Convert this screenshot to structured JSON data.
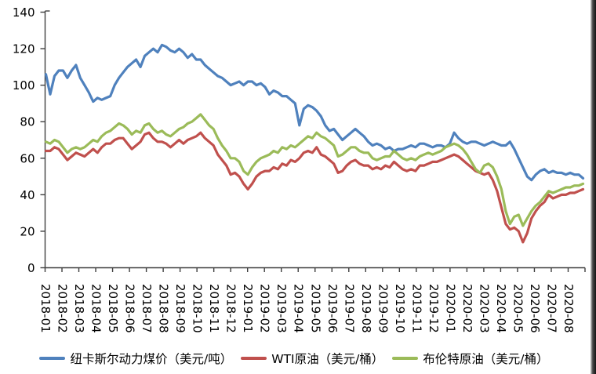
{
  "chart_data": {
    "type": "line",
    "title": "",
    "ylim": [
      0,
      140
    ],
    "y_ticks": [
      0,
      20,
      40,
      60,
      80,
      100,
      120,
      140
    ],
    "grid": false,
    "legend_position": "bottom",
    "axis_color": "#3f3f3f",
    "text_color": "#000000",
    "background_color": "#ffffff",
    "x_labels": [
      "2018-01",
      "2018-02",
      "2018-03",
      "2018-04",
      "2018-05",
      "2018-06",
      "2018-07",
      "2018-08",
      "2018-09",
      "2018-10",
      "2018-11",
      "2018-12",
      "2019-01",
      "2019-02",
      "2019-03",
      "2019-04",
      "2019-05",
      "2019-06",
      "2019-07",
      "2019-08",
      "2019-09",
      "2019-10",
      "2019-11",
      "2019-12",
      "2020-01",
      "2020-02",
      "2020-03",
      "2020-04",
      "2020-05",
      "2020-06",
      "2020-07",
      "2020-08"
    ],
    "points_per_month": 4,
    "series": [
      {
        "name": "纽卡斯尔动力煤价（美元/吨）",
        "color": "#4f81bd",
        "values": [
          106,
          95,
          105,
          108,
          108,
          104,
          108,
          111,
          104,
          100,
          96,
          91,
          93,
          92,
          93,
          94,
          100,
          104,
          107,
          110,
          112,
          114,
          110,
          116,
          118,
          120,
          118,
          122,
          121,
          119,
          118,
          120,
          118,
          115,
          117,
          114,
          114,
          111,
          109,
          107,
          105,
          104,
          102,
          100,
          101,
          102,
          100,
          102,
          102,
          100,
          101,
          99,
          95,
          97,
          96,
          94,
          94,
          92,
          90,
          78,
          87,
          89,
          88,
          86,
          83,
          78,
          75,
          76,
          73,
          70,
          72,
          74,
          76,
          74,
          72,
          69,
          67,
          68,
          67,
          65,
          66,
          64,
          65,
          65,
          66,
          67,
          66,
          68,
          68,
          67,
          66,
          67,
          67,
          66,
          68,
          74,
          71,
          69,
          68,
          69,
          69,
          68,
          67,
          68,
          69,
          68,
          67,
          67,
          69,
          65,
          60,
          55,
          50,
          48,
          51,
          53,
          54,
          52,
          53,
          52,
          52,
          51,
          52,
          51,
          51,
          49
        ]
      },
      {
        "name": "WTI原油（美元/桶）",
        "color": "#c0504d",
        "values": [
          64,
          64,
          66,
          65,
          62,
          59,
          61,
          63,
          62,
          61,
          63,
          65,
          63,
          66,
          68,
          68,
          70,
          71,
          71,
          68,
          65,
          67,
          69,
          73,
          74,
          71,
          69,
          69,
          68,
          66,
          68,
          70,
          68,
          70,
          71,
          72,
          74,
          71,
          69,
          67,
          62,
          59,
          56,
          51,
          52,
          50,
          46,
          43,
          46,
          50,
          52,
          53,
          53,
          55,
          54,
          57,
          56,
          59,
          58,
          60,
          63,
          64,
          63,
          66,
          62,
          61,
          59,
          57,
          52,
          53,
          56,
          58,
          59,
          57,
          56,
          56,
          54,
          55,
          54,
          56,
          55,
          58,
          56,
          54,
          53,
          54,
          53,
          56,
          56,
          57,
          58,
          58,
          59,
          60,
          61,
          62,
          61,
          59,
          57,
          55,
          53,
          52,
          51,
          52,
          48,
          42,
          33,
          24,
          21,
          22,
          20,
          14,
          19,
          27,
          31,
          34,
          36,
          40,
          38,
          39,
          40,
          40,
          41,
          41,
          42,
          43
        ]
      },
      {
        "name": "布伦特原油（美元/桶）",
        "color": "#9bbb59",
        "values": [
          69,
          68,
          70,
          69,
          66,
          63,
          65,
          66,
          65,
          66,
          68,
          70,
          69,
          72,
          74,
          75,
          77,
          79,
          78,
          76,
          73,
          75,
          74,
          78,
          79,
          76,
          74,
          75,
          73,
          72,
          74,
          76,
          77,
          79,
          80,
          82,
          84,
          81,
          78,
          76,
          71,
          67,
          64,
          60,
          60,
          58,
          53,
          51,
          55,
          58,
          60,
          61,
          62,
          64,
          63,
          66,
          65,
          67,
          66,
          68,
          70,
          72,
          71,
          74,
          72,
          71,
          69,
          67,
          61,
          62,
          64,
          66,
          66,
          64,
          63,
          63,
          60,
          59,
          60,
          61,
          61,
          64,
          62,
          60,
          59,
          60,
          59,
          61,
          62,
          63,
          62,
          63,
          64,
          66,
          67,
          68,
          67,
          65,
          62,
          58,
          54,
          52,
          56,
          57,
          55,
          50,
          43,
          31,
          24,
          28,
          29,
          23,
          27,
          31,
          34,
          36,
          39,
          42,
          41,
          42,
          43,
          44,
          44,
          45,
          45,
          46
        ]
      }
    ]
  }
}
